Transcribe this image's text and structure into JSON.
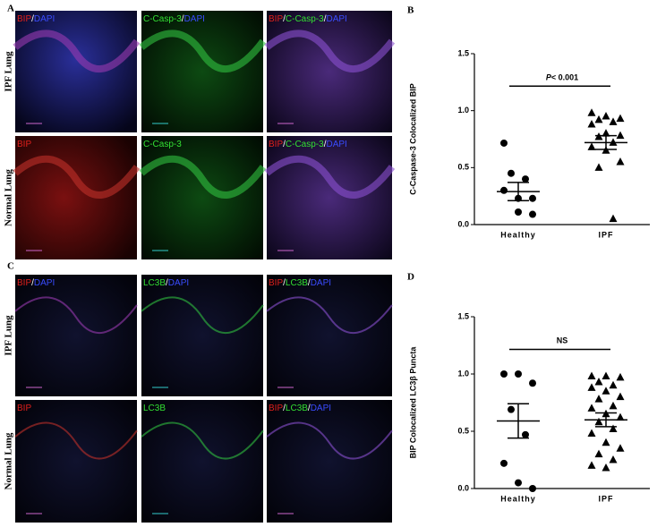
{
  "panel_letters": [
    "A",
    "B",
    "C",
    "D"
  ],
  "micrographs": [
    {
      "row_labels": [
        "IPF Lung",
        "Normal Lung"
      ],
      "images": [
        [
          {
            "text": "BIP",
            "color": "#e0201c"
          },
          {
            "text": "/",
            "color": "#ffffff"
          },
          {
            "text": "DAPI",
            "color": "#3a4cff"
          }
        ],
        [
          {
            "text": "C-Casp-3",
            "color": "#33e033"
          },
          {
            "text": "/",
            "color": "#ffffff"
          },
          {
            "text": "DAPI",
            "color": "#3a4cff"
          }
        ],
        [
          {
            "text": "BIP",
            "color": "#e0201c"
          },
          {
            "text": "/",
            "color": "#ffffff"
          },
          {
            "text": "C-Casp-3",
            "color": "#33e033"
          },
          {
            "text": "/",
            "color": "#ffffff"
          },
          {
            "text": "DAPI",
            "color": "#3a4cff"
          }
        ],
        [
          {
            "text": "BIP",
            "color": "#e0201c"
          }
        ],
        [
          {
            "text": "C-Casp-3",
            "color": "#33e033"
          }
        ],
        [
          {
            "text": "BIP",
            "color": "#e0201c"
          },
          {
            "text": "/",
            "color": "#ffffff"
          },
          {
            "text": "C-Casp-3",
            "color": "#33e033"
          },
          {
            "text": "/",
            "color": "#ffffff"
          },
          {
            "text": "DAPI",
            "color": "#3a4cff"
          }
        ]
      ]
    },
    {
      "row_labels": [
        "IPF Lung",
        "Normal Lung"
      ],
      "images": [
        [
          {
            "text": "BIP",
            "color": "#e0201c"
          },
          {
            "text": "/",
            "color": "#ffffff"
          },
          {
            "text": "DAPI",
            "color": "#3a4cff"
          }
        ],
        [
          {
            "text": "LC3B",
            "color": "#33e033"
          },
          {
            "text": "/",
            "color": "#ffffff"
          },
          {
            "text": "DAPI",
            "color": "#3a4cff"
          }
        ],
        [
          {
            "text": "BIP",
            "color": "#e0201c"
          },
          {
            "text": "/",
            "color": "#ffffff"
          },
          {
            "text": "LC3B",
            "color": "#33e033"
          },
          {
            "text": "/",
            "color": "#ffffff"
          },
          {
            "text": "DAPI",
            "color": "#3a4cff"
          }
        ],
        [
          {
            "text": "BIP",
            "color": "#e0201c"
          }
        ],
        [
          {
            "text": "LC3B",
            "color": "#33e033"
          }
        ],
        [
          {
            "text": "BIP",
            "color": "#e0201c"
          },
          {
            "text": "/",
            "color": "#ffffff"
          },
          {
            "text": "LC3B",
            "color": "#33e033"
          },
          {
            "text": "/",
            "color": "#ffffff"
          },
          {
            "text": "DAPI",
            "color": "#3a4cff"
          }
        ]
      ]
    }
  ],
  "chart_data": [
    {
      "type": "dot",
      "ylabel": "C-Caspase-3 Colocalized BIP",
      "categories": [
        "Healthy",
        "IPF"
      ],
      "markers": [
        "circle",
        "triangle"
      ],
      "color": "#000000",
      "values": [
        [
          0.715,
          0.23,
          0.23,
          0.45,
          0.4,
          0.3,
          0.11,
          0.09
        ],
        [
          0.98,
          0.95,
          0.93,
          0.92,
          0.9,
          0.88,
          0.8,
          0.78,
          0.77,
          0.72,
          0.68,
          0.65,
          0.55,
          0.5,
          0.05
        ]
      ],
      "mean": [
        0.29,
        0.72
      ],
      "sem": [
        0.08,
        0.06
      ],
      "annotation": {
        "italic": "P",
        "text": "< 0.001"
      },
      "ylim": [
        0,
        1.5
      ],
      "yticks": [
        {
          "value": 0,
          "label": "0.0"
        },
        0.5,
        {
          "value": 1,
          "label": "1.0"
        },
        1.5
      ]
    },
    {
      "type": "dot",
      "ylabel": "BIP  Colocalized LC3β Puncta",
      "categories": [
        "Healthy",
        "IPF"
      ],
      "markers": [
        "circle",
        "triangle"
      ],
      "color": "#000000",
      "values": [
        [
          1.0,
          1.0,
          0.92,
          0.69,
          0.47,
          0.22,
          0.05,
          0.0
        ],
        [
          0.98,
          0.98,
          0.97,
          0.93,
          0.9,
          0.88,
          0.85,
          0.8,
          0.78,
          0.72,
          0.7,
          0.65,
          0.62,
          0.58,
          0.52,
          0.48,
          0.4,
          0.35,
          0.3,
          0.25,
          0.2,
          0.18
        ]
      ],
      "mean": [
        0.59,
        0.6
      ],
      "sem": [
        0.15,
        0.06
      ],
      "annotation": {
        "text": "NS"
      },
      "ylim": [
        0,
        1.5
      ],
      "yticks": [
        {
          "value": 0,
          "label": "0.0"
        },
        0.5,
        {
          "value": 1,
          "label": "1.0"
        },
        1.5
      ]
    }
  ]
}
